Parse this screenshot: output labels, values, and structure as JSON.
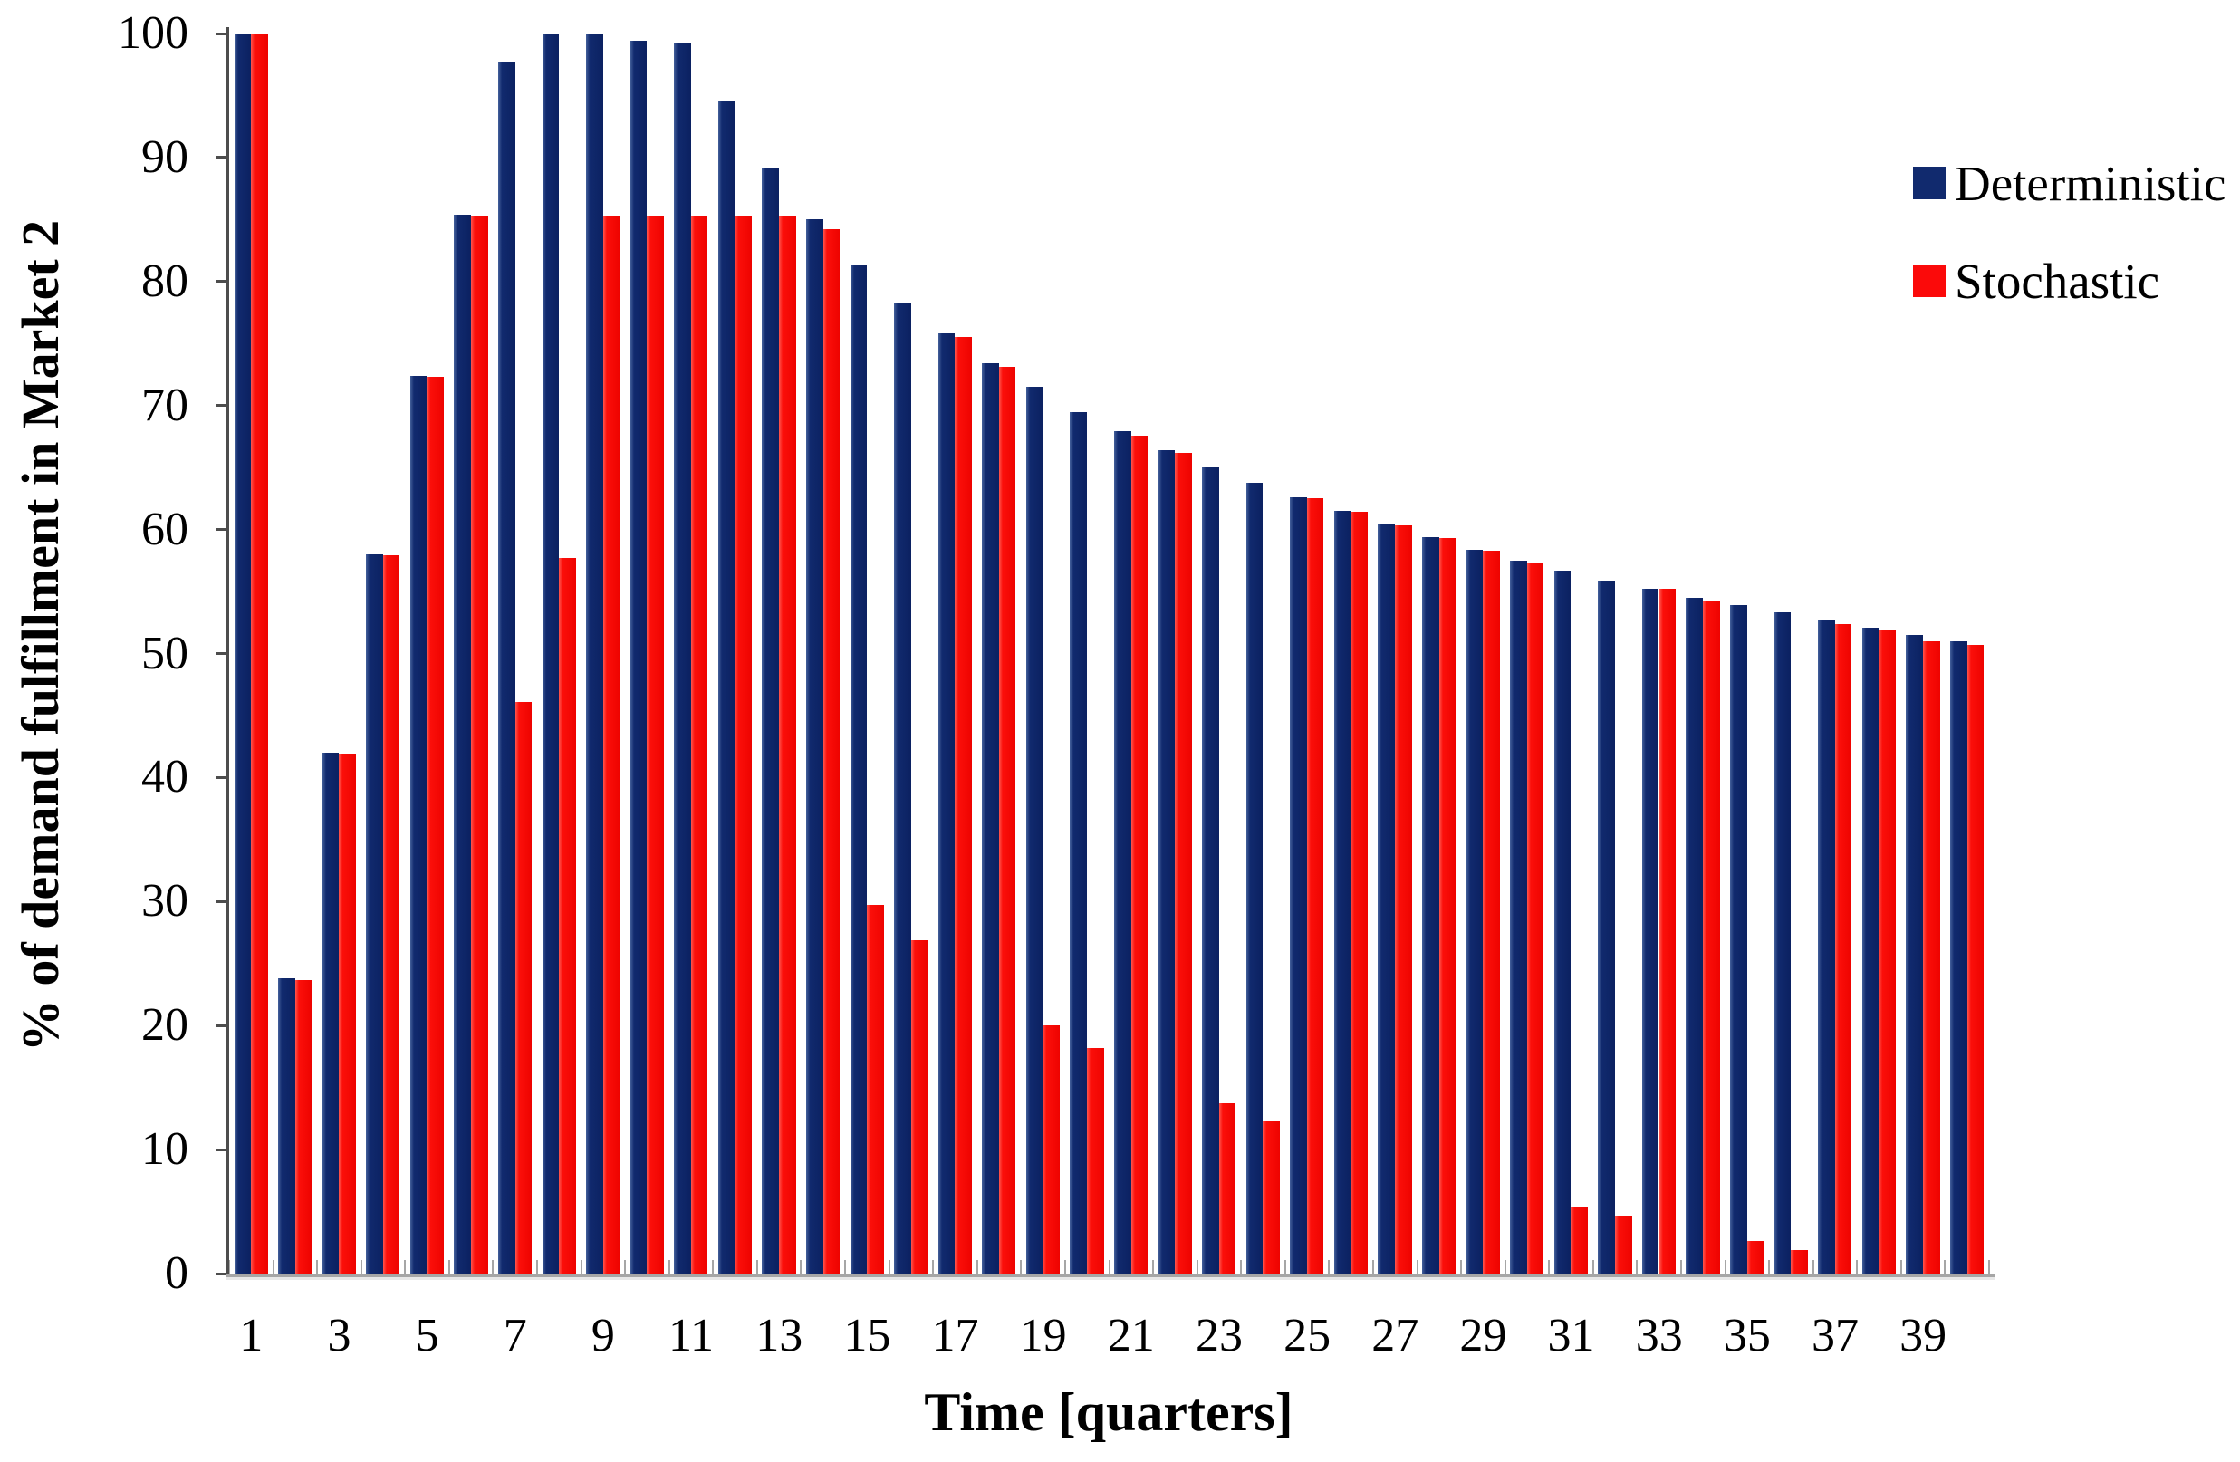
{
  "figure": {
    "background": "#ffffff"
  },
  "chart_data": {
    "type": "bar",
    "title": "",
    "xlabel": "Time [quarters]",
    "ylabel": "% of demand fulfillment in Market 2",
    "categories": [
      1,
      2,
      3,
      4,
      5,
      6,
      7,
      8,
      9,
      10,
      11,
      12,
      13,
      14,
      15,
      16,
      17,
      18,
      19,
      20,
      21,
      22,
      23,
      24,
      25,
      26,
      27,
      28,
      29,
      30,
      31,
      32,
      33,
      34,
      35,
      36,
      37,
      38,
      39,
      40
    ],
    "x_tick_labels_shown": [
      "1",
      "3",
      "5",
      "7",
      "9",
      "11",
      "13",
      "15",
      "17",
      "19",
      "21",
      "23",
      "25",
      "27",
      "29",
      "31",
      "33",
      "35",
      "37",
      "39"
    ],
    "y_tick_labels": [
      "0",
      "10",
      "20",
      "30",
      "40",
      "50",
      "60",
      "70",
      "80",
      "90",
      "100"
    ],
    "ylim": [
      0,
      100
    ],
    "ytick_step": 10,
    "grid": false,
    "legend_position": "top-right",
    "series": [
      {
        "name": "Deterministic",
        "color": "#112a6e",
        "values": [
          100,
          23.8,
          42.0,
          58.0,
          72.4,
          85.4,
          97.7,
          100,
          100,
          99.4,
          99.3,
          94.5,
          89.2,
          85.0,
          81.4,
          78.3,
          75.8,
          73.4,
          71.5,
          69.5,
          67.9,
          66.4,
          65.0,
          63.8,
          62.6,
          61.5,
          60.4,
          59.4,
          58.4,
          57.5,
          56.7,
          55.9,
          55.2,
          54.5,
          53.9,
          53.3,
          52.7,
          52.1,
          51.5,
          51.0
        ]
      },
      {
        "name": "Stochastic",
        "color": "#fb0a0a",
        "values": [
          100,
          23.7,
          41.9,
          57.9,
          72.3,
          85.3,
          46.1,
          57.7,
          85.3,
          85.3,
          85.3,
          85.3,
          85.3,
          84.2,
          29.7,
          26.9,
          75.5,
          73.1,
          20.0,
          18.2,
          67.6,
          66.2,
          13.7,
          12.3,
          62.5,
          61.4,
          60.3,
          59.3,
          58.3,
          57.3,
          5.4,
          4.7,
          55.2,
          54.3,
          2.6,
          1.9,
          52.4,
          51.9,
          51.0,
          50.7
        ]
      }
    ]
  },
  "legend": {
    "items": [
      {
        "label": "Deterministic",
        "color": "#112a6e"
      },
      {
        "label": "Stochastic",
        "color": "#fb0a0a"
      }
    ]
  }
}
